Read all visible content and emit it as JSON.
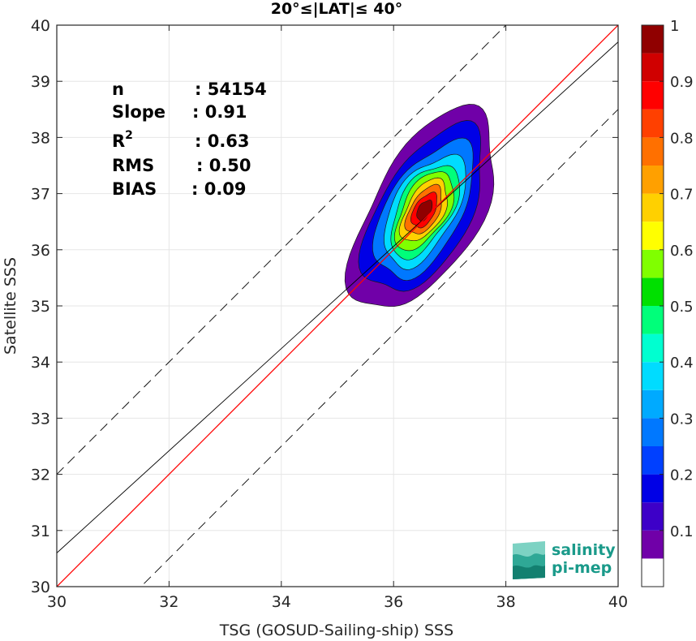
{
  "chart_data": {
    "type": "heatmap",
    "title": "20°≤|LAT|≤ 40°",
    "xlabel": "TSG (GOSUD-Sailing-ship) SSS",
    "ylabel": "Satellite SSS",
    "xlim": [
      30,
      40
    ],
    "ylim": [
      30,
      40
    ],
    "x_ticks": [
      "30",
      "32",
      "34",
      "36",
      "38",
      "40"
    ],
    "y_ticks": [
      "30",
      "31",
      "32",
      "33",
      "34",
      "35",
      "36",
      "37",
      "38",
      "39",
      "40"
    ],
    "grid": true,
    "stats": [
      {
        "key": "n",
        "value": ": 54154"
      },
      {
        "key": "Slope",
        "value": ": 0.91"
      },
      {
        "key": "R",
        "sup": "2",
        "value": ": 0.63"
      },
      {
        "key": "RMS",
        "value": ": 0.50"
      },
      {
        "key": "BIAS",
        "value": ": 0.09"
      }
    ],
    "lines": {
      "identity": {
        "slope": 1.0,
        "intercept": 0.0,
        "color": "#ff0000"
      },
      "regression": {
        "slope": 0.91,
        "intercept": 3.3,
        "color": "#000000"
      },
      "bounds": [
        {
          "slope": 1.0,
          "intercept": 2.0,
          "style": "dashed"
        },
        {
          "slope": 1.0,
          "intercept": -1.5,
          "style": "dashed"
        }
      ]
    },
    "density": {
      "center": [
        36.55,
        36.7
      ],
      "major_axis_dir": [
        0.5,
        0.866
      ],
      "levels": [
        0.05,
        0.15,
        0.25,
        0.35,
        0.45,
        0.55,
        0.65,
        0.75,
        0.85,
        0.95
      ],
      "semi_major": [
        2.0,
        1.65,
        1.35,
        1.1,
        0.92,
        0.78,
        0.62,
        0.48,
        0.34,
        0.2
      ],
      "semi_minor": [
        0.95,
        0.8,
        0.66,
        0.55,
        0.46,
        0.39,
        0.32,
        0.25,
        0.18,
        0.11
      ]
    },
    "colorbar": {
      "range": [
        0,
        1
      ],
      "ticks": [
        "0.1",
        "0.2",
        "0.3",
        "0.4",
        "0.5",
        "0.6",
        "0.7",
        "0.8",
        "0.9",
        "1"
      ],
      "colors": [
        "#ffffff",
        "#7000a8",
        "#3d00c8",
        "#0000e6",
        "#0040ff",
        "#0078ff",
        "#00aaff",
        "#00dcff",
        "#00ffd0",
        "#00ff7a",
        "#00e000",
        "#80ff00",
        "#ffff00",
        "#ffd000",
        "#ffa000",
        "#ff7000",
        "#ff4000",
        "#ff0000",
        "#d00000",
        "#900000"
      ]
    }
  },
  "logo": {
    "line1": "salinity",
    "line2": "pi-mep",
    "color": "#1a9a8a"
  }
}
